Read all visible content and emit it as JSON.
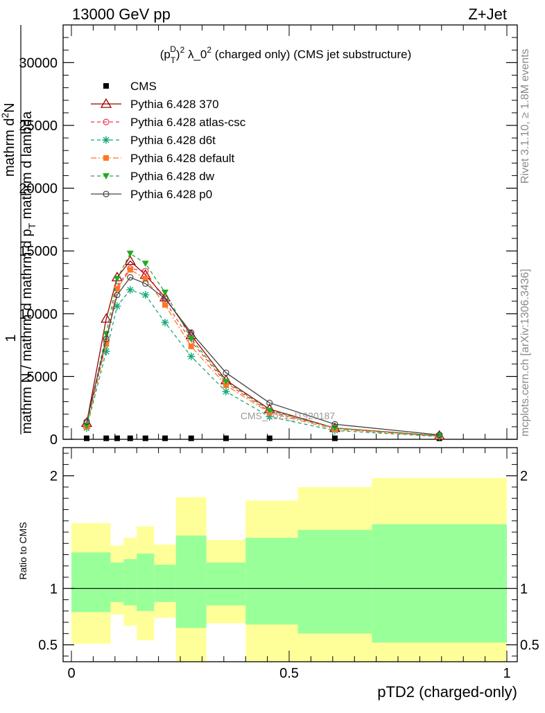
{
  "header": {
    "left": "13000 GeV pp",
    "right": "Z+Jet"
  },
  "side_labels": {
    "rivet": "Rivet 3.1.10, ≥ 1.8M events",
    "mcplots": "mcplots.cern.ch [arXiv:1306.3436]"
  },
  "watermark": "CMS_2021_I1920187",
  "chart_data": [
    {
      "type": "line",
      "title": "(p_T^D)^2 λ_0^2 (charged only) (CMS jet substructure)",
      "title_parts": {
        "base": "(p",
        "sub": "T",
        "sup1": "D",
        "close": ")",
        "sup2": "2",
        "mid": " λ_0",
        "sup3": "2",
        "rest": " (charged only) (CMS jet substructure)"
      },
      "ylabel": "1 / mathrm N / mathrm d mathrm d p_T mathrm d lambda mathrm d^2N",
      "ylabel_parts": {
        "one": "1",
        "den": "mathrm N / mathrm d mathrm d p",
        "sub": "T",
        "den_end": " mathrm d lambda",
        "num_a": "mathrm d",
        "num_sup": "2",
        "num_b": "N"
      },
      "xlim": [
        0,
        1
      ],
      "ylim": [
        0,
        33000
      ],
      "yticks": [
        0,
        5000,
        10000,
        15000,
        20000,
        25000,
        30000
      ],
      "ytick_labels": [
        "0",
        "5000",
        "10000",
        "15000",
        "20000",
        "25000",
        "30000"
      ],
      "x": [
        0.035,
        0.08,
        0.105,
        0.135,
        0.17,
        0.215,
        0.275,
        0.355,
        0.455,
        0.605,
        0.845
      ],
      "series": [
        {
          "name": "CMS",
          "color": "#000000",
          "marker": "square",
          "dash": "none",
          "values": [
            80,
            80,
            80,
            80,
            80,
            80,
            80,
            80,
            80,
            80,
            80
          ]
        },
        {
          "name": "Pythia 6.428 370",
          "color": "#990000",
          "marker": "triangle-open",
          "dash": "solid",
          "values": [
            1300,
            9600,
            12900,
            14200,
            13100,
            11300,
            8300,
            4700,
            2400,
            900,
            280
          ]
        },
        {
          "name": "Pythia 6.428 atlas-csc",
          "color": "#ee3355",
          "marker": "circle-open",
          "dash": "dashed",
          "values": [
            1100,
            7800,
            12200,
            13600,
            13400,
            11000,
            7800,
            4500,
            2200,
            900,
            280
          ]
        },
        {
          "name": "Pythia 6.428 d6t",
          "color": "#11aa77",
          "marker": "star",
          "dash": "dashed",
          "values": [
            900,
            7000,
            10600,
            11900,
            11500,
            9300,
            6600,
            3800,
            1800,
            700,
            220
          ]
        },
        {
          "name": "Pythia 6.428 default",
          "color": "#ff7722",
          "marker": "square",
          "dash": "dashdot",
          "values": [
            1000,
            7600,
            12000,
            13500,
            12800,
            10700,
            7400,
            4300,
            2100,
            800,
            250
          ]
        },
        {
          "name": "Pythia 6.428 dw",
          "color": "#22aa22",
          "marker": "triangle-down",
          "dash": "dashed",
          "values": [
            1100,
            8400,
            12800,
            14800,
            14000,
            11700,
            8000,
            4600,
            2300,
            900,
            280
          ]
        },
        {
          "name": "Pythia 6.428 p0",
          "color": "#444444",
          "marker": "circle-open",
          "dash": "solid",
          "values": [
            1400,
            8000,
            11500,
            12900,
            12400,
            11200,
            8500,
            5300,
            2900,
            1200,
            350
          ]
        }
      ]
    },
    {
      "type": "area",
      "ylabel": "Ratio to CMS",
      "xlabel": "pTD2 (charged-only)",
      "xlim": [
        0,
        1
      ],
      "ylim": [
        0.35,
        2.25
      ],
      "xticks": [
        0,
        0.5,
        1
      ],
      "xtick_labels": [
        "0",
        "0.5",
        "1"
      ],
      "yticks": [
        0.5,
        1,
        2
      ],
      "ytick_labels": [
        "0.5",
        "1",
        "2"
      ],
      "reference_line": 1,
      "band_colors": {
        "outer": "#ffff99",
        "inner": "#99ff99"
      },
      "bands": [
        {
          "x0": 0.0,
          "x1": 0.09,
          "outer_lo": 0.51,
          "outer_hi": 1.58,
          "inner_lo": 0.79,
          "inner_hi": 1.32
        },
        {
          "x0": 0.09,
          "x1": 0.12,
          "outer_lo": 0.77,
          "outer_hi": 1.38,
          "inner_lo": 0.88,
          "inner_hi": 1.23
        },
        {
          "x0": 0.12,
          "x1": 0.15,
          "outer_lo": 0.67,
          "outer_hi": 1.45,
          "inner_lo": 0.85,
          "inner_hi": 1.26
        },
        {
          "x0": 0.15,
          "x1": 0.19,
          "outer_lo": 0.54,
          "outer_hi": 1.55,
          "inner_lo": 0.8,
          "inner_hi": 1.31
        },
        {
          "x0": 0.19,
          "x1": 0.24,
          "outer_lo": 0.74,
          "outer_hi": 1.39,
          "inner_lo": 0.88,
          "inner_hi": 1.21
        },
        {
          "x0": 0.24,
          "x1": 0.31,
          "outer_lo": 0.35,
          "outer_hi": 1.81,
          "inner_lo": 0.65,
          "inner_hi": 1.47
        },
        {
          "x0": 0.31,
          "x1": 0.4,
          "outer_lo": 0.69,
          "outer_hi": 1.43,
          "inner_lo": 0.85,
          "inner_hi": 1.23
        },
        {
          "x0": 0.4,
          "x1": 0.52,
          "outer_lo": 0.35,
          "outer_hi": 1.78,
          "inner_lo": 0.68,
          "inner_hi": 1.45
        },
        {
          "x0": 0.52,
          "x1": 0.69,
          "outer_lo": 0.35,
          "outer_hi": 1.9,
          "inner_lo": 0.6,
          "inner_hi": 1.52
        },
        {
          "x0": 0.69,
          "x1": 1.0,
          "outer_lo": 0.35,
          "outer_hi": 1.98,
          "inner_lo": 0.52,
          "inner_hi": 1.57
        }
      ],
      "white_gap": {
        "x0": 0.31,
        "x1": 0.4,
        "lo": 0.35,
        "hi": 0.69
      }
    }
  ]
}
